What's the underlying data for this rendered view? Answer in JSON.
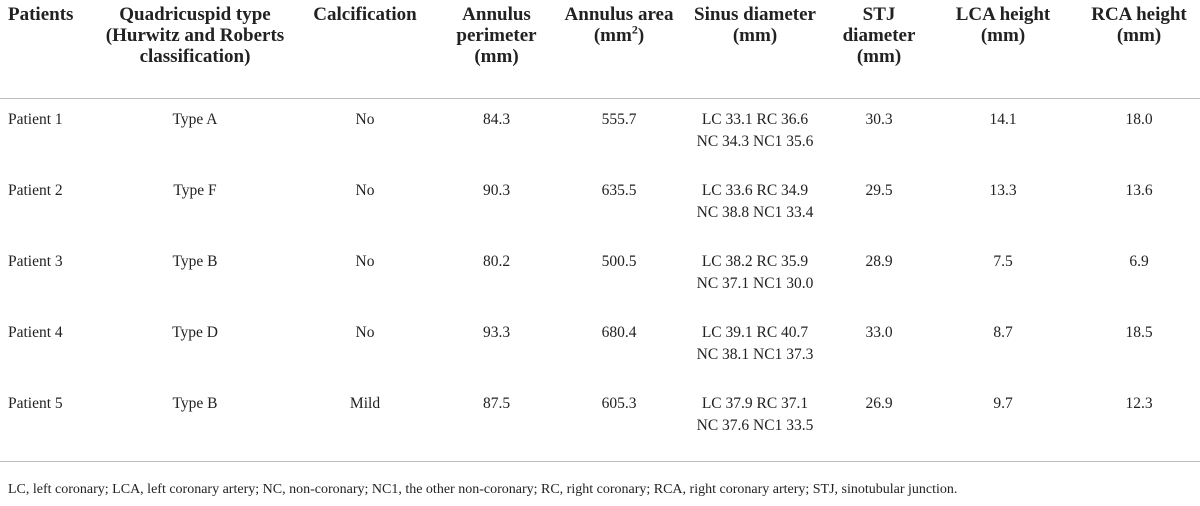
{
  "headers": {
    "patients": "Patients",
    "type": "Quadricuspid type (Hurwitz and Roberts classification)",
    "calcification": "Calcification",
    "perimeter": "Annulus perimeter (mm)",
    "area_main": "Annulus area (mm",
    "area_sup": "2",
    "area_tail": ")",
    "sinus": "Sinus diameter (mm)",
    "stj": "STJ diameter (mm)",
    "lca": "LCA height (mm)",
    "rca": "RCA height (mm)"
  },
  "rows": [
    {
      "patient": "Patient 1",
      "type": "Type A",
      "calcification": "No",
      "perimeter": "84.3",
      "area": "555.7",
      "sinus": "LC 33.1 RC 36.6 NC 34.3 NC1 35.6",
      "stj": "30.3",
      "lca": "14.1",
      "rca": "18.0"
    },
    {
      "patient": "Patient 2",
      "type": "Type F",
      "calcification": "No",
      "perimeter": "90.3",
      "area": "635.5",
      "sinus": "LC 33.6 RC 34.9 NC 38.8 NC1 33.4",
      "stj": "29.5",
      "lca": "13.3",
      "rca": "13.6"
    },
    {
      "patient": "Patient 3",
      "type": "Type B",
      "calcification": "No",
      "perimeter": "80.2",
      "area": "500.5",
      "sinus": "LC 38.2 RC 35.9 NC 37.1 NC1 30.0",
      "stj": "28.9",
      "lca": "7.5",
      "rca": "6.9"
    },
    {
      "patient": "Patient 4",
      "type": "Type D",
      "calcification": "No",
      "perimeter": "93.3",
      "area": "680.4",
      "sinus": "LC 39.1 RC 40.7 NC 38.1 NC1 37.3",
      "stj": "33.0",
      "lca": "8.7",
      "rca": "18.5"
    },
    {
      "patient": "Patient 5",
      "type": "Type B",
      "calcification": "Mild",
      "perimeter": "87.5",
      "area": "605.3",
      "sinus": "LC 37.9 RC 37.1 NC 37.6 NC1 33.5",
      "stj": "26.9",
      "lca": "9.7",
      "rca": "12.3"
    }
  ],
  "footnote": "LC, left coronary; LCA, left coronary artery; NC, non-coronary; NC1, the other non-coronary; RC, right coronary; RCA, right coronary artery; STJ, sinotubular junction."
}
